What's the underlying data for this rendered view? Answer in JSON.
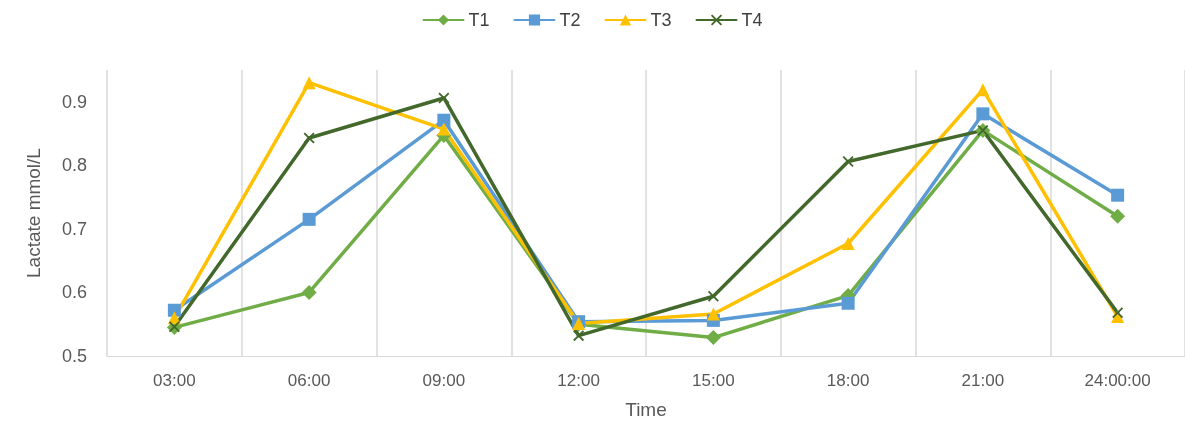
{
  "chart_data": {
    "type": "line",
    "xlabel": "Time",
    "ylabel": "Lactate mmol/L",
    "categories": [
      "03:00",
      "06:00",
      "09:00",
      "12:00",
      "15:00",
      "18:00",
      "21:00",
      "24:00:00"
    ],
    "series": [
      {
        "name": "T1",
        "color": "#70ad47",
        "marker": "diamond",
        "values": [
          0.545,
          0.6,
          0.847,
          0.55,
          0.529,
          0.595,
          0.855,
          0.72
        ]
      },
      {
        "name": "T2",
        "color": "#5b9bd5",
        "marker": "square",
        "values": [
          0.572,
          0.715,
          0.871,
          0.554,
          0.556,
          0.583,
          0.881,
          0.753
        ]
      },
      {
        "name": "T3",
        "color": "#ffc000",
        "marker": "triangle",
        "values": [
          0.56,
          0.93,
          0.857,
          0.551,
          0.566,
          0.677,
          0.919,
          0.562
        ]
      },
      {
        "name": "T4",
        "color": "#43682b",
        "marker": "cross",
        "values": [
          0.546,
          0.843,
          0.906,
          0.532,
          0.594,
          0.806,
          0.855,
          0.568
        ]
      }
    ],
    "ylim": [
      0.5,
      0.95
    ],
    "yticks": [
      0.5,
      0.6,
      0.7,
      0.8,
      0.9
    ],
    "grid": "x",
    "legend": "top",
    "line_style": "solid"
  }
}
